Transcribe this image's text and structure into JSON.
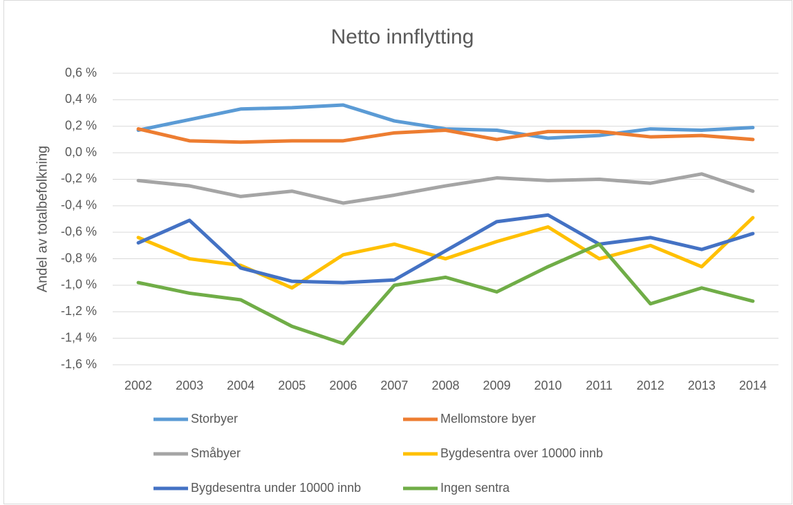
{
  "chart_data": {
    "type": "line",
    "title": "Netto innflytting",
    "y_label": "Andel av totalbefolkning",
    "categories": [
      "2002",
      "2003",
      "2004",
      "2005",
      "2006",
      "2007",
      "2008",
      "2009",
      "2010",
      "2011",
      "2012",
      "2013",
      "2014"
    ],
    "series": [
      {
        "name": "Storbyer",
        "color": "#5b9bd5",
        "values": [
          0.17,
          0.25,
          0.33,
          0.34,
          0.36,
          0.24,
          0.18,
          0.17,
          0.11,
          0.13,
          0.18,
          0.17,
          0.19
        ]
      },
      {
        "name": "Mellomstore byer",
        "color": "#ed7d31",
        "values": [
          0.18,
          0.09,
          0.08,
          0.09,
          0.09,
          0.15,
          0.17,
          0.1,
          0.16,
          0.16,
          0.12,
          0.13,
          0.1
        ]
      },
      {
        "name": "Småbyer",
        "color": "#a5a5a5",
        "values": [
          -0.21,
          -0.25,
          -0.33,
          -0.29,
          -0.38,
          -0.32,
          -0.25,
          -0.19,
          -0.21,
          -0.2,
          -0.23,
          -0.16,
          -0.29
        ]
      },
      {
        "name": "Bygdesentra over 10000 innb",
        "color": "#ffc000",
        "values": [
          -0.64,
          -0.8,
          -0.85,
          -1.02,
          -0.77,
          -0.69,
          -0.8,
          -0.67,
          -0.56,
          -0.8,
          -0.7,
          -0.86,
          -0.49
        ]
      },
      {
        "name": "Bygdesentra under 10000 innb",
        "color": "#4472c4",
        "values": [
          -0.68,
          -0.51,
          -0.87,
          -0.97,
          -0.98,
          -0.96,
          -0.74,
          -0.52,
          -0.47,
          -0.69,
          -0.64,
          -0.73,
          -0.61
        ]
      },
      {
        "name": "Ingen sentra",
        "color": "#70ad47",
        "values": [
          -0.98,
          -1.06,
          -1.11,
          -1.31,
          -1.44,
          -1.0,
          -0.94,
          -1.05,
          -0.86,
          -0.69,
          -1.14,
          -1.02,
          -1.12
        ]
      }
    ],
    "ylim": [
      -1.6,
      0.6
    ],
    "yticks": [
      {
        "value": -1.6,
        "label": "-1,6 %"
      },
      {
        "value": -1.4,
        "label": "-1,4 %"
      },
      {
        "value": -1.2,
        "label": "-1,2 %"
      },
      {
        "value": -1.0,
        "label": "-1,0 %"
      },
      {
        "value": -0.8,
        "label": "-0,8 %"
      },
      {
        "value": -0.6,
        "label": "-0,6 %"
      },
      {
        "value": -0.4,
        "label": "-0,4 %"
      },
      {
        "value": -0.2,
        "label": "-0,2 %"
      },
      {
        "value": 0.0,
        "label": "0,0 %"
      },
      {
        "value": 0.2,
        "label": "0,2 %"
      },
      {
        "value": 0.4,
        "label": "0,4 %"
      },
      {
        "value": 0.6,
        "label": "0,6 %"
      }
    ],
    "grid": true,
    "legend": "bottom"
  }
}
